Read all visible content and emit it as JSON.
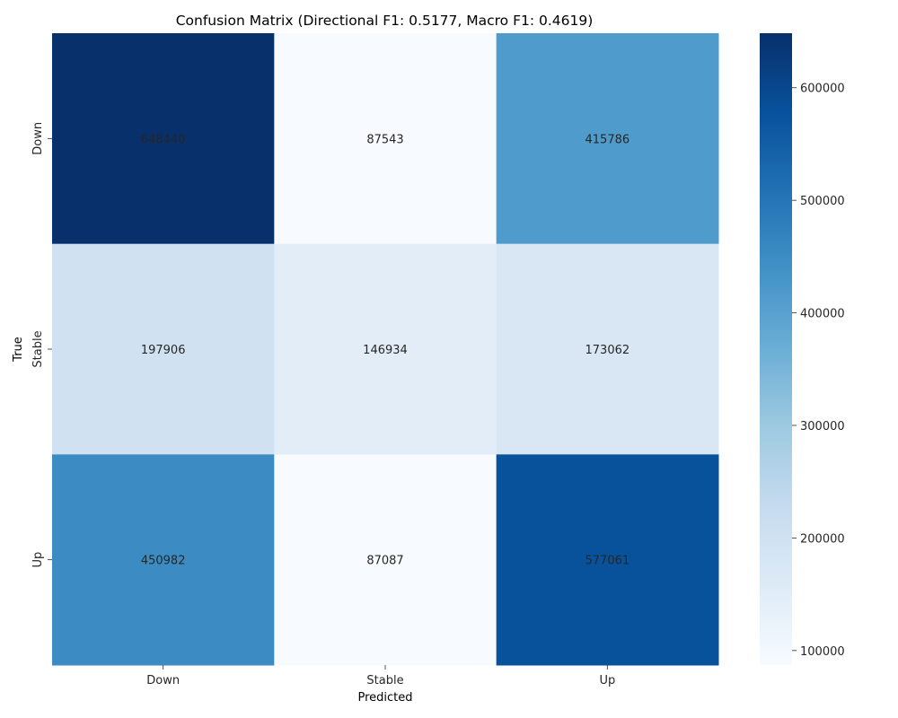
{
  "chart_data": {
    "type": "heatmap",
    "title": "Confusion Matrix (Directional F1: 0.5177, Macro F1: 0.4619)",
    "xlabel": "Predicted",
    "ylabel": "True",
    "x_categories": [
      "Down",
      "Stable",
      "Up"
    ],
    "y_categories": [
      "Down",
      "Stable",
      "Up"
    ],
    "values": [
      [
        648440,
        87543,
        415786
      ],
      [
        197906,
        146934,
        173062
      ],
      [
        450982,
        87087,
        577061
      ]
    ],
    "colormap": "Blues",
    "colorbar": {
      "range": [
        87087,
        648440
      ],
      "ticks": [
        100000,
        200000,
        300000,
        400000,
        500000,
        600000
      ],
      "tick_labels": [
        "100000",
        "200000",
        "300000",
        "400000",
        "500000",
        "600000"
      ]
    },
    "annotation_colors": {
      "dark_cell": "#ffffff",
      "light_cell": "#262626"
    }
  }
}
